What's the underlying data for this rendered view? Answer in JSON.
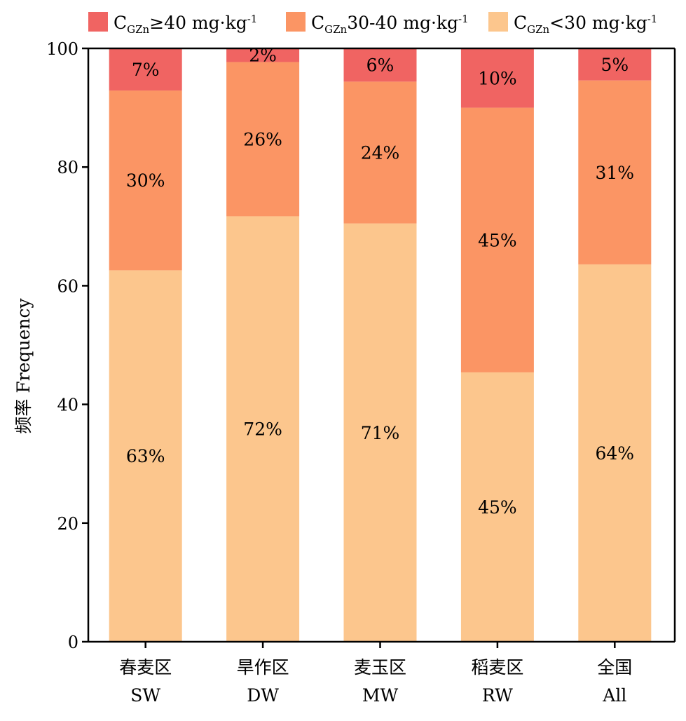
{
  "chart_data": {
    "type": "bar",
    "stacked": true,
    "orientation": "vertical",
    "ylabel": "频率 Frequency",
    "ylim": [
      0,
      100
    ],
    "yticks": [
      0,
      20,
      40,
      60,
      80,
      100
    ],
    "grid": false,
    "legend_position": "top",
    "categories": [
      {
        "cn": "春麦区",
        "en": "SW"
      },
      {
        "cn": "旱作区",
        "en": "DW"
      },
      {
        "cn": "麦玉区",
        "en": "MW"
      },
      {
        "cn": "稻麦区",
        "en": "RW"
      },
      {
        "cn": "全国",
        "en": "All"
      }
    ],
    "series": [
      {
        "name": "CGZn<30 mg·kg-1",
        "legend": {
          "main": "C",
          "sub": "GZn",
          "rest": "<30 mg·kg",
          "sup": "-1"
        },
        "color": "#FCC68D",
        "values": [
          62.6,
          71.7,
          70.5,
          45.4,
          63.6
        ],
        "labels": [
          "63%",
          "72%",
          "71%",
          "45%",
          "64%"
        ]
      },
      {
        "name": "CGZn30-40 mg·kg-1",
        "legend": {
          "main": "C",
          "sub": "GZn",
          "rest": "30-40 mg·kg",
          "sup": "-1"
        },
        "color": "#FB9564",
        "values": [
          30.3,
          26.0,
          23.9,
          44.6,
          31.0
        ],
        "labels": [
          "30%",
          "26%",
          "24%",
          "45%",
          "31%"
        ]
      },
      {
        "name": "CGZn≥40 mg·kg-1",
        "legend": {
          "main": "C",
          "sub": "GZn",
          "rest": "≥40 mg·kg",
          "sup": "-1"
        },
        "color": "#F06462",
        "values": [
          7.1,
          2.3,
          5.6,
          10.0,
          5.4
        ],
        "labels": [
          "7%",
          "2%",
          "6%",
          "10%",
          "5%"
        ]
      }
    ],
    "legend_order": [
      2,
      1,
      0
    ]
  }
}
